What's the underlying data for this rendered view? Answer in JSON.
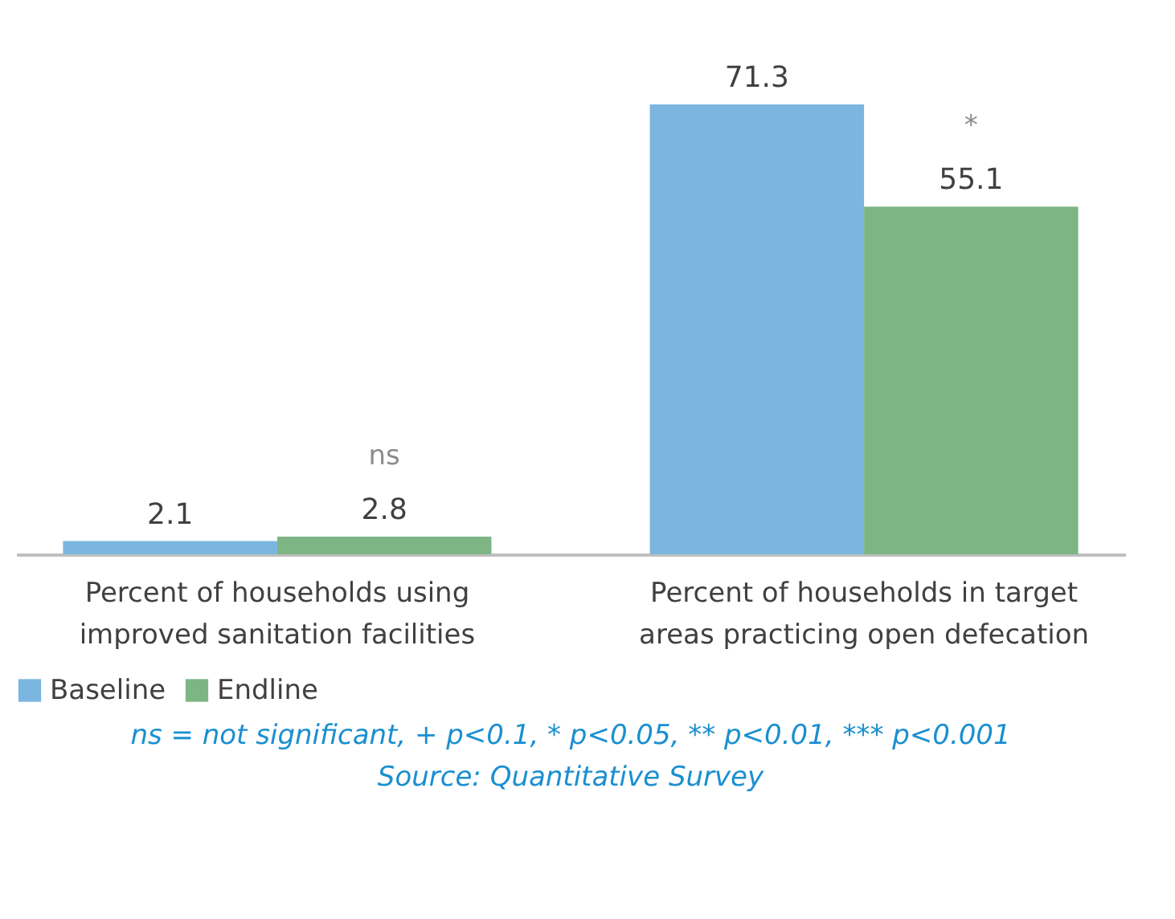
{
  "chart_data": {
    "type": "bar",
    "categories": [
      "Percent of households using improved sanitation facilities",
      "Percent of households in target areas practicing open defecation"
    ],
    "series": [
      {
        "name": "Baseline",
        "color": "#7ab6e0",
        "values": [
          2.1,
          71.3
        ]
      },
      {
        "name": "Endline",
        "color": "#7db585",
        "values": [
          2.8,
          55.1
        ]
      }
    ],
    "data_labels": true,
    "legend": "bottom",
    "grid": false,
    "annotations": [
      "ns",
      "*",
      "ns = not significant, + p<0.1, * p<0.05, ** p<0.01, *** p<0.001",
      "Source: Quantitative Survey"
    ]
  }
}
